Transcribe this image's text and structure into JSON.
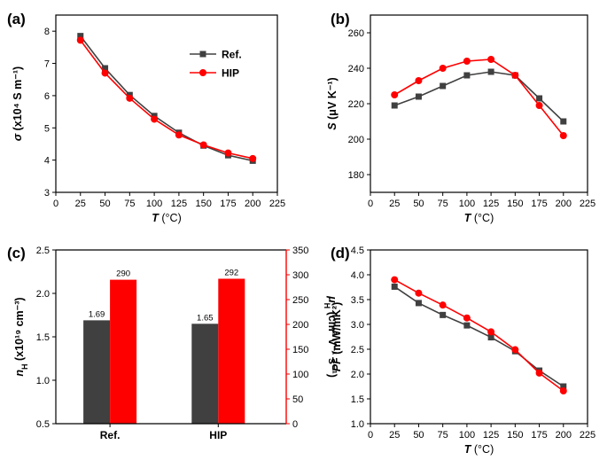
{
  "colors": {
    "ref": "#404040",
    "hip": "#ff0000",
    "axis": "#000000"
  },
  "chart_data": [
    {
      "panel": "(a)",
      "type": "line",
      "xlabel_var": "T",
      "xlabel_unit": "(°C)",
      "ylabel_var": "σ",
      "ylabel_unit": "(x10⁴ S m⁻¹)",
      "xlim": [
        0,
        225
      ],
      "ylim": [
        3,
        8.5
      ],
      "xticks": [
        0,
        25,
        50,
        75,
        100,
        125,
        150,
        175,
        200,
        225
      ],
      "yticks": [
        3,
        4,
        5,
        6,
        7,
        8
      ],
      "x": [
        25,
        50,
        75,
        100,
        125,
        150,
        175,
        200
      ],
      "legend": [
        "Ref.",
        "HIP"
      ],
      "series": [
        {
          "name": "Ref.",
          "values": [
            7.85,
            6.85,
            6.02,
            5.37,
            4.85,
            4.45,
            4.15,
            3.98
          ]
        },
        {
          "name": "HIP",
          "values": [
            7.72,
            6.7,
            5.92,
            5.27,
            4.78,
            4.47,
            4.22,
            4.05
          ]
        }
      ]
    },
    {
      "panel": "(b)",
      "type": "line",
      "xlabel_var": "T",
      "xlabel_unit": "(°C)",
      "ylabel_var": "S",
      "ylabel_unit": "(μV K⁻¹)",
      "xlim": [
        0,
        225
      ],
      "ylim": [
        170,
        270
      ],
      "xticks": [
        0,
        25,
        50,
        75,
        100,
        125,
        150,
        175,
        200,
        225
      ],
      "yticks": [
        180,
        200,
        220,
        240,
        260
      ],
      "x": [
        25,
        50,
        75,
        100,
        125,
        150,
        175,
        200
      ],
      "series": [
        {
          "name": "Ref.",
          "values": [
            219,
            224,
            230,
            236,
            238,
            236,
            223,
            210
          ]
        },
        {
          "name": "HIP",
          "values": [
            225,
            233,
            240,
            244,
            245,
            236,
            219,
            202
          ]
        }
      ]
    },
    {
      "panel": "(c)",
      "type": "bar",
      "categories": [
        "Ref.",
        "HIP"
      ],
      "ylabel_left_var": "n",
      "ylabel_left_sub": "H",
      "ylabel_left_unit": "(x10¹⁹ cm⁻³)",
      "ylabel_right_var": "μ",
      "ylabel_right_sub": "H",
      "ylabel_right_unit": "(cm² V⁻¹ s⁻¹)",
      "ylim_left": [
        0.5,
        2.5
      ],
      "ylim_right": [
        0,
        350
      ],
      "yticks_left": [
        0.5,
        1.0,
        1.5,
        2.0,
        2.5
      ],
      "yticks_right": [
        0,
        50,
        100,
        150,
        200,
        250,
        300,
        350
      ],
      "series": [
        {
          "name": "n_H",
          "axis": "left",
          "values": [
            1.69,
            1.65
          ],
          "labels": [
            "1.69",
            "1.65"
          ]
        },
        {
          "name": "μ_H",
          "axis": "right",
          "values": [
            290,
            292
          ],
          "labels": [
            "290",
            "292"
          ]
        }
      ]
    },
    {
      "panel": "(d)",
      "type": "line",
      "xlabel_var": "T",
      "xlabel_unit": "(°C)",
      "ylabel_var": "PF",
      "ylabel_unit": "(mW/mK²)",
      "xlim": [
        0,
        225
      ],
      "ylim": [
        1.0,
        4.5
      ],
      "xticks": [
        0,
        25,
        50,
        75,
        100,
        125,
        150,
        175,
        200,
        225
      ],
      "yticks": [
        1.0,
        1.5,
        2.0,
        2.5,
        3.0,
        3.5,
        4.0,
        4.5
      ],
      "x": [
        25,
        50,
        75,
        100,
        125,
        150,
        175,
        200
      ],
      "series": [
        {
          "name": "Ref.",
          "values": [
            3.76,
            3.43,
            3.19,
            2.98,
            2.74,
            2.46,
            2.07,
            1.75
          ]
        },
        {
          "name": "HIP",
          "values": [
            3.9,
            3.63,
            3.39,
            3.13,
            2.85,
            2.49,
            2.02,
            1.66
          ]
        }
      ]
    }
  ]
}
